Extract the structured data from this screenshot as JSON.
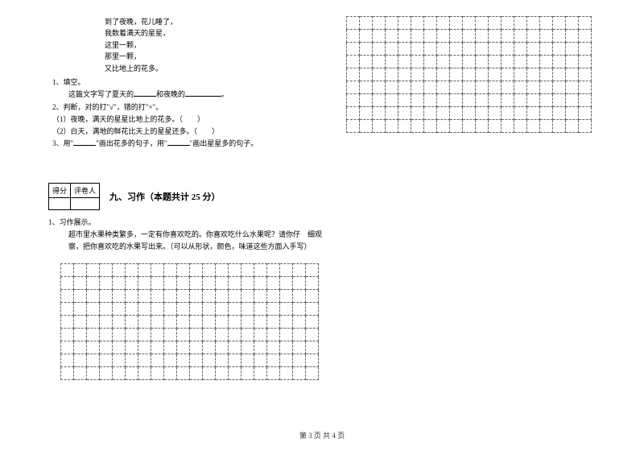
{
  "poem": {
    "l1": "到了夜晚，花儿睡了，",
    "l2": "我数着满天的星星，",
    "l3": "这里一颗，",
    "l4": "那里一颗，",
    "l5": "又比地上的花多。"
  },
  "q1": {
    "num": "1、填空。",
    "text_a": "这篇文字写了夏天的",
    "text_b": "和夜晚的",
    "text_c": "。"
  },
  "q2": {
    "num": "2、判断，对的打\"√\"，错的打\"×\"。",
    "sub1": "（1）夜晚，满天的星星比地上的花多。（　　）",
    "sub2": "（2）白天，满地的鲜花比天上的星星还多。（　　）"
  },
  "q3": {
    "num_a": "3、用\"",
    "num_b": "\"画出花多的句子，用\"",
    "num_c": "\"画出星星多的句子。"
  },
  "score": {
    "c1": "得分",
    "c2": "评卷人"
  },
  "section9": {
    "title": "九、习作（本题共计 25 分）"
  },
  "essay": {
    "num": "1、习作展示。",
    "body": "超市里水果种类繁多，一定有你喜欢吃的。你喜欢吃什么水果呢？请你仔　细观察，把你喜欢吃的水果写出来。（可以从形状，颜色，味道这些方面入手写）"
  },
  "footer": "第 3 页 共 4 页",
  "grid": {
    "leftCols": 20,
    "leftRows": 9,
    "rightCols": 19,
    "rightRows": 9
  },
  "style": {
    "cellBorder": "#666666",
    "textColor": "#000000",
    "bg": "#ffffff"
  }
}
